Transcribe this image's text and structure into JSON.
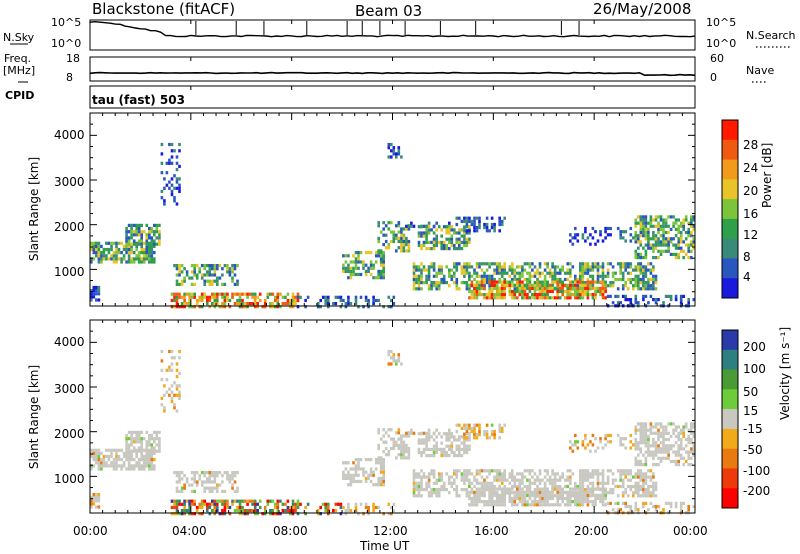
{
  "header": {
    "station": "Blackstone (fitACF)",
    "beam": "Beam 03",
    "date": "26/May/2008"
  },
  "left_labels": {
    "nsky": "N.Sky",
    "freq": "Freq.",
    "mhz": "[MHz]",
    "cpid": "CPID"
  },
  "right_labels": {
    "nsearch": "N.Search",
    "nave": "Nave"
  },
  "cpid_text": "tau (fast) 503",
  "colors": {
    "velocity_palette": [
      "#2a3aa8",
      "#2e7f7f",
      "#4a9a35",
      "#6ccc3a",
      "#c8c8c0",
      "#f2a91a",
      "#e87a10",
      "#ee3a0a",
      "#ff0000"
    ],
    "power_palette": [
      "#1a1adf",
      "#2a56c0",
      "#3a8a7a",
      "#2fa04a",
      "#7cc43a",
      "#e8c428",
      "#f29a1a",
      "#f05a10",
      "#ff1a00"
    ]
  },
  "chart_data": [
    {
      "type": "line",
      "name": "noise-panel",
      "y_tick_labels": [
        "10^5",
        "10^0"
      ],
      "right_tick_labels": [
        "10^5",
        "10^0"
      ]
    },
    {
      "type": "line",
      "name": "freq-panel",
      "y_tick_labels": [
        "18",
        "8"
      ],
      "right_tick_labels": [
        "60",
        "0"
      ]
    },
    {
      "type": "heatmap",
      "name": "power",
      "ylabel": "Slant Range [km]",
      "y_ticks": [
        "1000",
        "2000",
        "3000",
        "4000"
      ],
      "ylim": [
        180,
        4500
      ],
      "xlim": [
        0,
        24
      ],
      "colorbar": {
        "label": "Power [dB]",
        "ticks": [
          "28",
          "24",
          "20",
          "16",
          "12",
          "8",
          "4"
        ],
        "range": [
          0,
          32
        ]
      }
    },
    {
      "type": "heatmap",
      "name": "velocity",
      "ylabel": "Slant Range [km]",
      "y_ticks": [
        "1000",
        "2000",
        "3000",
        "4000"
      ],
      "ylim": [
        180,
        4500
      ],
      "xlim": [
        0,
        24
      ],
      "x_ticks": [
        "00:00",
        "04:00",
        "08:00",
        "12:00",
        "16:00",
        "20:00",
        "00:00"
      ],
      "xlabel": "Time UT",
      "colorbar": {
        "label": "Velocity [m s⁻¹]",
        "ticks": [
          "200",
          "100",
          "50",
          "15",
          "-15",
          "-50",
          "-100",
          "-200"
        ]
      }
    }
  ]
}
